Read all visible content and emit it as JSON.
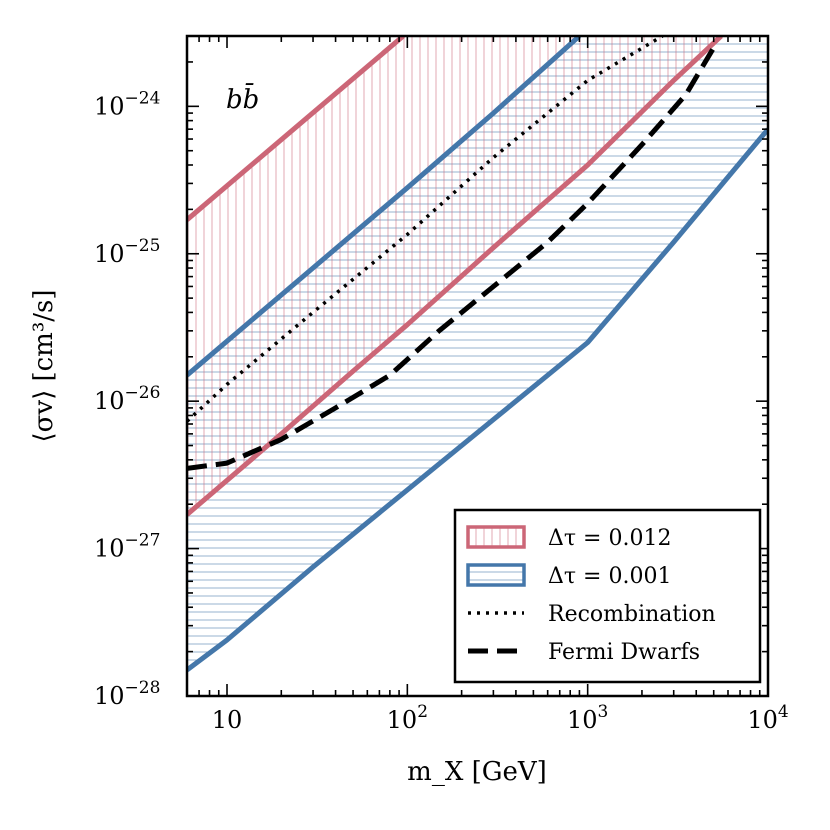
{
  "chart_data": {
    "type": "line",
    "xlabel": "m_X [GeV]",
    "ylabel": "⟨σv⟩ [cm³/s]",
    "xscale": "log",
    "yscale": "log",
    "xlim": [
      6,
      10000
    ],
    "ylim": [
      1e-28,
      3e-24
    ],
    "x_ticks": [
      {
        "value": 10,
        "base": "10",
        "exp": ""
      },
      {
        "value": 100,
        "base": "10",
        "exp": "2"
      },
      {
        "value": 1000,
        "base": "10",
        "exp": "3"
      },
      {
        "value": 10000,
        "base": "10",
        "exp": "4"
      }
    ],
    "y_ticks": [
      {
        "value": 1e-28,
        "base": "10",
        "exp": "−28"
      },
      {
        "value": 1e-27,
        "base": "10",
        "exp": "−27"
      },
      {
        "value": 1e-26,
        "base": "10",
        "exp": "−26"
      },
      {
        "value": 1e-25,
        "base": "10",
        "exp": "−25"
      },
      {
        "value": 1e-24,
        "base": "10",
        "exp": "−24"
      }
    ],
    "annotation": {
      "text": "bb̄",
      "x": 8.5,
      "y": 1e-24
    },
    "colors": {
      "red": "#cc6677",
      "blue": "#4477aa"
    },
    "series": [
      {
        "name": "Δτ = 0.012 upper",
        "label": "Δτ = 0.012",
        "color": "#cc6677",
        "style": "solid",
        "x": [
          6,
          95
        ],
        "y": [
          1.7e-25,
          3e-24
        ]
      },
      {
        "name": "Δτ = 0.012 lower",
        "label": "Δτ = 0.012",
        "color": "#cc6677",
        "style": "solid",
        "x": [
          6,
          20,
          50,
          100,
          300,
          1000,
          3000,
          5500
        ],
        "y": [
          1.7e-27,
          6e-27,
          1.6e-26,
          3.3e-26,
          1.1e-25,
          4e-25,
          1.5e-24,
          3e-24
        ]
      },
      {
        "name": "Δτ = 0.001 upper",
        "label": "Δτ = 0.001",
        "color": "#4477aa",
        "style": "solid",
        "x": [
          6,
          30,
          100,
          300,
          900
        ],
        "y": [
          1.5e-26,
          8e-26,
          2.8e-25,
          9e-25,
          3e-24
        ]
      },
      {
        "name": "Δτ = 0.001 lower",
        "label": "Δτ = 0.001",
        "color": "#4477aa",
        "style": "solid",
        "x": [
          6,
          10,
          30,
          100,
          300,
          1000,
          3000,
          10000
        ],
        "y": [
          1.5e-28,
          2.4e-28,
          7.5e-28,
          2.5e-27,
          7.5e-27,
          2.5e-26,
          1.2e-25,
          7e-25
        ]
      },
      {
        "name": "Recombination",
        "label": "Recombination",
        "color": "#000000",
        "style": "dotted",
        "x": [
          6,
          10,
          30,
          100,
          300,
          1000,
          2600
        ],
        "y": [
          7.3e-27,
          1.3e-26,
          4e-26,
          1.35e-25,
          4.5e-25,
          1.5e-24,
          3e-24
        ]
      },
      {
        "name": "Fermi Dwarfs",
        "label": "Fermi Dwarfs",
        "color": "#000000",
        "style": "dashed",
        "x": [
          6,
          10,
          20,
          40,
          80,
          150,
          300,
          600,
          1000,
          2000,
          3500,
          5000
        ],
        "y": [
          3.5e-27,
          3.8e-27,
          5.5e-27,
          9e-27,
          1.5e-26,
          3e-26,
          6e-26,
          1.2e-25,
          2.2e-25,
          5.5e-25,
          1.2e-24,
          2.5e-24
        ]
      }
    ],
    "legend": {
      "position": "lower-right",
      "entries": [
        {
          "label": "Δτ = 0.012",
          "kind": "hatch-v",
          "color": "#cc6677"
        },
        {
          "label": "Δτ = 0.001",
          "kind": "hatch-h",
          "color": "#4477aa"
        },
        {
          "label": "Recombination",
          "kind": "dotted",
          "color": "#000000"
        },
        {
          "label": "Fermi Dwarfs",
          "kind": "dashed",
          "color": "#000000"
        }
      ]
    }
  }
}
